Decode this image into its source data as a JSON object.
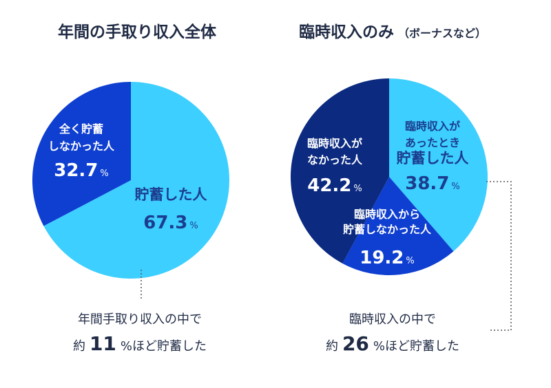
{
  "chart_data": [
    {
      "type": "pie",
      "title": "年間の手取り収入全体",
      "slices": [
        {
          "label_lines": [
            "貯蓄した人"
          ],
          "value": 67.3,
          "value_text": "67.3",
          "color": "#3ccfff",
          "text_color": "#1c3d8f"
        },
        {
          "label_lines": [
            "全く貯蓄",
            "しなかった人"
          ],
          "value": 32.7,
          "value_text": "32.7",
          "color": "#0f3fd1",
          "text_color": "#ffffff"
        }
      ],
      "unit": "%",
      "caption_line1": "年間手取り収入の中で",
      "caption_prefix": "約",
      "caption_number": "11",
      "caption_suffix": "%ほど貯蓄した"
    },
    {
      "type": "pie",
      "title": "臨時収入のみ",
      "subtitle": "（ボーナスなど）",
      "slices": [
        {
          "label_lines": [
            "臨時収入が",
            "あったとき",
            "貯蓄した人"
          ],
          "value": 38.7,
          "value_text": "38.7",
          "color": "#3ccfff",
          "text_color": "#1c3d8f"
        },
        {
          "label_lines": [
            "臨時収入から",
            "貯蓄しなかった人"
          ],
          "value": 19.2,
          "value_text": "19.2",
          "color": "#0f3fd1",
          "text_color": "#ffffff"
        },
        {
          "label_lines": [
            "臨時収入が",
            "なかった人"
          ],
          "value": 42.2,
          "value_text": "42.2",
          "color": "#0b2a80",
          "text_color": "#ffffff"
        }
      ],
      "unit": "%",
      "caption_line1": "臨時収入の中で",
      "caption_prefix": "約",
      "caption_number": "26",
      "caption_suffix": "%ほど貯蓄した"
    }
  ]
}
